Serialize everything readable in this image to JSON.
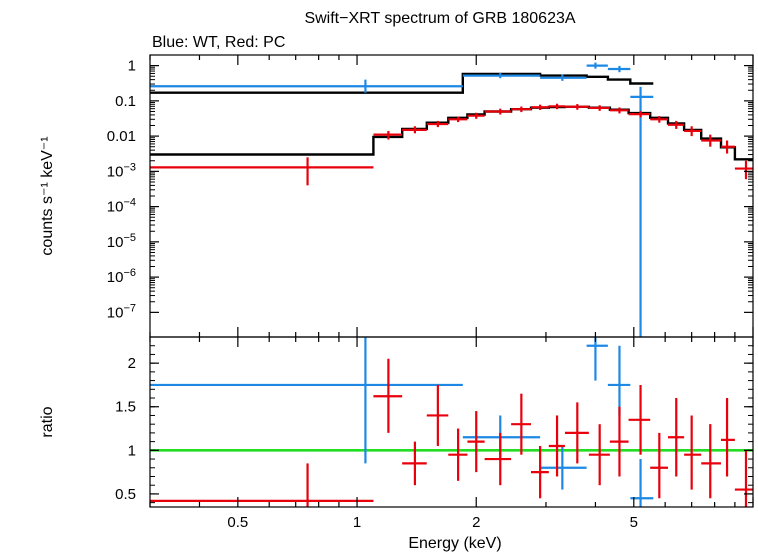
{
  "chart_data": {
    "type": "scatter",
    "title": "Swift−XRT spectrum of GRB 180623A",
    "subtitle": "Blue: WT, Red: PC",
    "xlabel": "Energy (keV)",
    "x_scale": "log",
    "xlim": [
      0.3,
      10
    ],
    "x_tick_labels": [
      "0.5",
      "1",
      "2",
      "5"
    ],
    "colors": {
      "wt": "#1e88e5",
      "pc": "#e8000b",
      "model": "#000000",
      "unity": "#22dd22"
    },
    "top_panel": {
      "ylabel": "counts s⁻¹ keV⁻¹",
      "y_scale": "log",
      "ylim": [
        2e-08,
        2
      ],
      "y_ticks": [
        {
          "value": 1,
          "label": "1"
        },
        {
          "value": 0.1,
          "label": "0.1"
        },
        {
          "value": 0.01,
          "label": "0.01"
        },
        {
          "value": 0.001,
          "base": "10",
          "exp": "−3"
        },
        {
          "value": 0.0001,
          "base": "10",
          "exp": "−4"
        },
        {
          "value": 1e-05,
          "base": "10",
          "exp": "−5"
        },
        {
          "value": 1e-06,
          "base": "10",
          "exp": "−6"
        },
        {
          "value": 1e-07,
          "base": "10",
          "exp": "−7"
        }
      ],
      "series": [
        {
          "name": "WT",
          "points": [
            {
              "x": 1.05,
              "x_lo": 0.3,
              "x_hi": 1.85,
              "y": 0.26,
              "y_lo": 0.17,
              "y_hi": 0.4
            },
            {
              "x": 2.3,
              "x_lo": 1.85,
              "x_hi": 2.9,
              "y": 0.52,
              "y_lo": 0.44,
              "y_hi": 0.62
            },
            {
              "x": 3.3,
              "x_lo": 2.9,
              "x_hi": 3.8,
              "y": 0.45,
              "y_lo": 0.37,
              "y_hi": 0.56
            },
            {
              "x": 4.0,
              "x_lo": 3.8,
              "x_hi": 4.3,
              "y": 1.0,
              "y_lo": 0.82,
              "y_hi": 1.22
            },
            {
              "x": 4.6,
              "x_lo": 4.3,
              "x_hi": 4.9,
              "y": 0.8,
              "y_lo": 0.65,
              "y_hi": 0.98
            },
            {
              "x": 5.2,
              "x_lo": 4.9,
              "x_hi": 5.6,
              "y": 0.13,
              "y_lo": 0.0,
              "y_hi": 0.25
            }
          ]
        },
        {
          "name": "PC",
          "points": [
            {
              "x": 0.75,
              "x_lo": 0.3,
              "x_hi": 1.1,
              "y": 0.0013,
              "y_lo": 0.0004,
              "y_hi": 0.0025
            },
            {
              "x": 1.2,
              "x_lo": 1.1,
              "x_hi": 1.3,
              "y": 0.011,
              "y_lo": 0.008,
              "y_hi": 0.014
            },
            {
              "x": 1.4,
              "x_lo": 1.3,
              "x_hi": 1.5,
              "y": 0.015,
              "y_lo": 0.012,
              "y_hi": 0.019
            },
            {
              "x": 1.6,
              "x_lo": 1.5,
              "x_hi": 1.7,
              "y": 0.022,
              "y_lo": 0.018,
              "y_hi": 0.027
            },
            {
              "x": 1.8,
              "x_lo": 1.7,
              "x_hi": 1.9,
              "y": 0.03,
              "y_lo": 0.025,
              "y_hi": 0.036
            },
            {
              "x": 2.0,
              "x_lo": 1.9,
              "x_hi": 2.1,
              "y": 0.038,
              "y_lo": 0.031,
              "y_hi": 0.046
            },
            {
              "x": 2.3,
              "x_lo": 2.1,
              "x_hi": 2.45,
              "y": 0.05,
              "y_lo": 0.041,
              "y_hi": 0.06
            },
            {
              "x": 2.6,
              "x_lo": 2.45,
              "x_hi": 2.75,
              "y": 0.058,
              "y_lo": 0.048,
              "y_hi": 0.069
            },
            {
              "x": 2.9,
              "x_lo": 2.75,
              "x_hi": 3.05,
              "y": 0.066,
              "y_lo": 0.055,
              "y_hi": 0.078
            },
            {
              "x": 3.2,
              "x_lo": 3.05,
              "x_hi": 3.35,
              "y": 0.07,
              "y_lo": 0.058,
              "y_hi": 0.083
            },
            {
              "x": 3.6,
              "x_lo": 3.35,
              "x_hi": 3.85,
              "y": 0.068,
              "y_lo": 0.056,
              "y_hi": 0.081
            },
            {
              "x": 4.1,
              "x_lo": 3.85,
              "x_hi": 4.35,
              "y": 0.063,
              "y_lo": 0.052,
              "y_hi": 0.075
            },
            {
              "x": 4.6,
              "x_lo": 4.35,
              "x_hi": 4.85,
              "y": 0.054,
              "y_lo": 0.044,
              "y_hi": 0.065
            },
            {
              "x": 5.2,
              "x_lo": 4.85,
              "x_hi": 5.5,
              "y": 0.042,
              "y_lo": 0.034,
              "y_hi": 0.051
            },
            {
              "x": 5.8,
              "x_lo": 5.5,
              "x_hi": 6.1,
              "y": 0.03,
              "y_lo": 0.024,
              "y_hi": 0.037
            },
            {
              "x": 6.4,
              "x_lo": 6.1,
              "x_hi": 6.7,
              "y": 0.021,
              "y_lo": 0.016,
              "y_hi": 0.027
            },
            {
              "x": 7.0,
              "x_lo": 6.7,
              "x_hi": 7.4,
              "y": 0.014,
              "y_lo": 0.01,
              "y_hi": 0.019
            },
            {
              "x": 7.8,
              "x_lo": 7.4,
              "x_hi": 8.3,
              "y": 0.0075,
              "y_lo": 0.005,
              "y_hi": 0.011
            },
            {
              "x": 8.6,
              "x_lo": 8.3,
              "x_hi": 9.0,
              "y": 0.005,
              "y_lo": 0.0032,
              "y_hi": 0.0075
            },
            {
              "x": 9.6,
              "x_lo": 9.0,
              "x_hi": 10.0,
              "y": 0.0012,
              "y_lo": 0.0006,
              "y_hi": 0.002
            }
          ]
        }
      ],
      "models": [
        {
          "name": "WT model",
          "steps": [
            {
              "x_lo": 0.3,
              "x_hi": 1.85,
              "y": 0.17
            },
            {
              "x_lo": 1.85,
              "x_hi": 2.9,
              "y": 0.58
            },
            {
              "x_lo": 2.9,
              "x_hi": 3.8,
              "y": 0.52
            },
            {
              "x_lo": 3.8,
              "x_hi": 4.3,
              "y": 0.48
            },
            {
              "x_lo": 4.3,
              "x_hi": 4.9,
              "y": 0.4
            },
            {
              "x_lo": 4.9,
              "x_hi": 5.6,
              "y": 0.31
            }
          ]
        },
        {
          "name": "PC model",
          "steps": [
            {
              "x_lo": 0.3,
              "x_hi": 1.1,
              "y": 0.003
            },
            {
              "x_lo": 1.1,
              "x_hi": 1.3,
              "y": 0.0095
            },
            {
              "x_lo": 1.3,
              "x_hi": 1.5,
              "y": 0.016
            },
            {
              "x_lo": 1.5,
              "x_hi": 1.7,
              "y": 0.024
            },
            {
              "x_lo": 1.7,
              "x_hi": 1.9,
              "y": 0.033
            },
            {
              "x_lo": 1.9,
              "x_hi": 2.1,
              "y": 0.041
            },
            {
              "x_lo": 2.1,
              "x_hi": 2.45,
              "y": 0.05
            },
            {
              "x_lo": 2.45,
              "x_hi": 2.75,
              "y": 0.058
            },
            {
              "x_lo": 2.75,
              "x_hi": 3.05,
              "y": 0.064
            },
            {
              "x_lo": 3.05,
              "x_hi": 3.35,
              "y": 0.067
            },
            {
              "x_lo": 3.35,
              "x_hi": 3.85,
              "y": 0.068
            },
            {
              "x_lo": 3.85,
              "x_hi": 4.35,
              "y": 0.064
            },
            {
              "x_lo": 4.35,
              "x_hi": 4.85,
              "y": 0.056
            },
            {
              "x_lo": 4.85,
              "x_hi": 5.5,
              "y": 0.045
            },
            {
              "x_lo": 5.5,
              "x_hi": 6.1,
              "y": 0.033
            },
            {
              "x_lo": 6.1,
              "x_hi": 6.7,
              "y": 0.023
            },
            {
              "x_lo": 6.7,
              "x_hi": 7.4,
              "y": 0.015
            },
            {
              "x_lo": 7.4,
              "x_hi": 8.3,
              "y": 0.0085
            },
            {
              "x_lo": 8.3,
              "x_hi": 9.0,
              "y": 0.0048
            },
            {
              "x_lo": 9.0,
              "x_hi": 10.0,
              "y": 0.0022
            }
          ]
        }
      ]
    },
    "bottom_panel": {
      "ylabel": "ratio",
      "y_scale": "linear",
      "ylim": [
        0.35,
        2.3
      ],
      "y_ticks": [
        {
          "value": 0.5,
          "label": "0.5"
        },
        {
          "value": 1,
          "label": "1"
        },
        {
          "value": 1.5,
          "label": "1.5"
        },
        {
          "value": 2,
          "label": "2"
        }
      ],
      "unity_line": 1,
      "series": [
        {
          "name": "WT",
          "points": [
            {
              "x": 1.05,
              "x_lo": 0.3,
              "x_hi": 1.85,
              "y": 1.75,
              "y_lo": 0.85,
              "y_hi": 2.3
            },
            {
              "x": 2.3,
              "x_lo": 1.85,
              "x_hi": 2.9,
              "y": 1.15,
              "y_lo": 0.9,
              "y_hi": 1.4
            },
            {
              "x": 3.3,
              "x_lo": 2.9,
              "x_hi": 3.8,
              "y": 0.8,
              "y_lo": 0.55,
              "y_hi": 1.05
            },
            {
              "x": 4.0,
              "x_lo": 3.8,
              "x_hi": 4.3,
              "y": 2.2,
              "y_lo": 1.8,
              "y_hi": 2.3
            },
            {
              "x": 4.6,
              "x_lo": 4.3,
              "x_hi": 4.9,
              "y": 1.75,
              "y_lo": 1.4,
              "y_hi": 2.2
            },
            {
              "x": 5.2,
              "x_lo": 4.9,
              "x_hi": 5.6,
              "y": 0.45,
              "y_lo": 0.35,
              "y_hi": 0.9
            }
          ]
        },
        {
          "name": "PC",
          "points": [
            {
              "x": 0.75,
              "x_lo": 0.3,
              "x_hi": 1.1,
              "y": 0.42,
              "y_lo": 0.35,
              "y_hi": 0.85
            },
            {
              "x": 1.2,
              "x_lo": 1.1,
              "x_hi": 1.3,
              "y": 1.62,
              "y_lo": 1.2,
              "y_hi": 2.05
            },
            {
              "x": 1.4,
              "x_lo": 1.3,
              "x_hi": 1.5,
              "y": 0.85,
              "y_lo": 0.6,
              "y_hi": 1.1
            },
            {
              "x": 1.6,
              "x_lo": 1.5,
              "x_hi": 1.7,
              "y": 1.4,
              "y_lo": 1.05,
              "y_hi": 1.75
            },
            {
              "x": 1.8,
              "x_lo": 1.7,
              "x_hi": 1.9,
              "y": 0.95,
              "y_lo": 0.65,
              "y_hi": 1.25
            },
            {
              "x": 2.0,
              "x_lo": 1.9,
              "x_hi": 2.1,
              "y": 1.1,
              "y_lo": 0.75,
              "y_hi": 1.45
            },
            {
              "x": 2.3,
              "x_lo": 2.1,
              "x_hi": 2.45,
              "y": 0.9,
              "y_lo": 0.6,
              "y_hi": 1.2
            },
            {
              "x": 2.6,
              "x_lo": 2.45,
              "x_hi": 2.75,
              "y": 1.3,
              "y_lo": 0.95,
              "y_hi": 1.65
            },
            {
              "x": 2.9,
              "x_lo": 2.75,
              "x_hi": 3.05,
              "y": 0.75,
              "y_lo": 0.45,
              "y_hi": 1.05
            },
            {
              "x": 3.2,
              "x_lo": 3.05,
              "x_hi": 3.35,
              "y": 1.05,
              "y_lo": 0.7,
              "y_hi": 1.4
            },
            {
              "x": 3.6,
              "x_lo": 3.35,
              "x_hi": 3.85,
              "y": 1.2,
              "y_lo": 0.85,
              "y_hi": 1.55
            },
            {
              "x": 4.1,
              "x_lo": 3.85,
              "x_hi": 4.35,
              "y": 0.95,
              "y_lo": 0.6,
              "y_hi": 1.3
            },
            {
              "x": 4.6,
              "x_lo": 4.35,
              "x_hi": 4.85,
              "y": 1.1,
              "y_lo": 0.7,
              "y_hi": 1.5
            },
            {
              "x": 5.2,
              "x_lo": 4.85,
              "x_hi": 5.5,
              "y": 1.35,
              "y_lo": 0.95,
              "y_hi": 1.75
            },
            {
              "x": 5.8,
              "x_lo": 5.5,
              "x_hi": 6.1,
              "y": 0.8,
              "y_lo": 0.45,
              "y_hi": 1.2
            },
            {
              "x": 6.4,
              "x_lo": 6.1,
              "x_hi": 6.7,
              "y": 1.15,
              "y_lo": 0.7,
              "y_hi": 1.6
            },
            {
              "x": 7.0,
              "x_lo": 6.7,
              "x_hi": 7.4,
              "y": 0.95,
              "y_lo": 0.55,
              "y_hi": 1.4
            },
            {
              "x": 7.8,
              "x_lo": 7.4,
              "x_hi": 8.3,
              "y": 0.85,
              "y_lo": 0.45,
              "y_hi": 1.3
            },
            {
              "x": 8.6,
              "x_lo": 8.3,
              "x_hi": 9.0,
              "y": 1.12,
              "y_lo": 0.7,
              "y_hi": 1.6
            },
            {
              "x": 9.6,
              "x_lo": 9.0,
              "x_hi": 10.0,
              "y": 0.55,
              "y_lo": 0.35,
              "y_hi": 1.0
            }
          ]
        }
      ]
    }
  }
}
